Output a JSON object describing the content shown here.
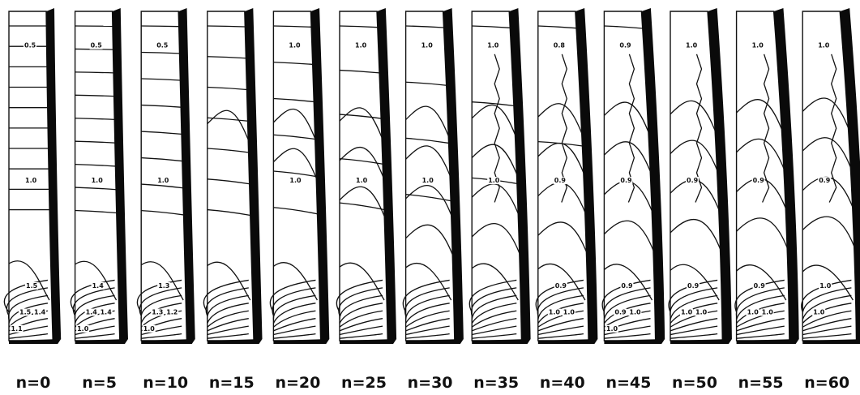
{
  "panels": [
    {
      "n_label": "n=0",
      "labels": [
        "0.5",
        "1.0",
        "1.5",
        "1.5",
        "1.4",
        "1.1"
      ],
      "stage": 0
    },
    {
      "n_label": "n=5",
      "labels": [
        "0.5",
        "1.0",
        "1.4",
        "1.4",
        "1.4",
        "1.0"
      ],
      "stage": 1
    },
    {
      "n_label": "n=10",
      "labels": [
        "0.5",
        "1.0",
        "1.3",
        "1.3",
        "1.2",
        "1.0"
      ],
      "stage": 2
    },
    {
      "n_label": "n=15",
      "labels": [],
      "stage": 3
    },
    {
      "n_label": "n=20",
      "labels": [
        "1.0",
        "1.0"
      ],
      "stage": 4
    },
    {
      "n_label": "n=25",
      "labels": [
        "1.0",
        "1.0"
      ],
      "stage": 5
    },
    {
      "n_label": "n=30",
      "labels": [
        "1.0",
        "1.0"
      ],
      "stage": 6
    },
    {
      "n_label": "n=35",
      "labels": [
        "1.0",
        "1.0"
      ],
      "stage": 7
    },
    {
      "n_label": "n=40",
      "labels": [
        "0.8",
        "0.9",
        "0.9",
        "1.0",
        "1.0"
      ],
      "stage": 8
    },
    {
      "n_label": "n=45",
      "labels": [
        "0.9",
        "0.9",
        "0.9",
        "0.9",
        "1.0",
        "1.0"
      ],
      "stage": 9
    },
    {
      "n_label": "n=50",
      "labels": [
        "1.0",
        "0.9",
        "0.9",
        "1.0",
        "1.0"
      ],
      "stage": 10
    },
    {
      "n_label": "n=55",
      "labels": [
        "1.0",
        "0.9",
        "0.9",
        "1.0",
        "1.0"
      ],
      "stage": 11
    },
    {
      "n_label": "n=60",
      "labels": [
        "1.0",
        "0.9",
        "1.0",
        "1.0"
      ],
      "stage": 12
    }
  ]
}
